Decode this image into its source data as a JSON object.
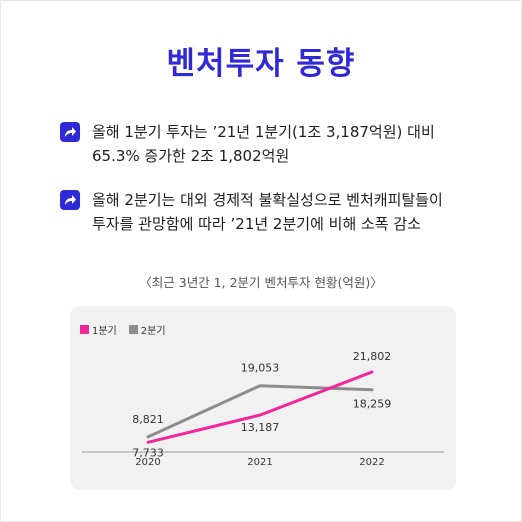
{
  "title": "벤처투자 동향",
  "bullets": [
    {
      "line1": "올해 1분기 투자는 ’21년 1분기(1조 3,187억원) 대비",
      "line2": "65.3% 증가한 2조 1,802억원"
    },
    {
      "line1": "올해 2분기는 대외 경제적 불확실성으로 벤처캐피탈들이",
      "line2": "투자를 관망함에 따라 ’21년 2분기에 비해 소폭 감소"
    }
  ],
  "colors": {
    "accent": "#2f29d6",
    "q1": "#f0269a",
    "q2": "#8c8c8c"
  },
  "icons": {
    "bullet": "share-arrow-icon"
  },
  "chart_data": {
    "type": "line",
    "title": "〈최근 3년간 1, 2분기 벤처투자 현황(억원)〉",
    "categories": [
      "2020",
      "2021",
      "2022"
    ],
    "ylim": [
      6000,
      24000
    ],
    "grid": false,
    "legend": "top-left",
    "series": [
      {
        "name": "1분기",
        "values": [
          7733,
          13187,
          21802
        ],
        "labels": [
          "7,733",
          "13,187",
          "21,802"
        ]
      },
      {
        "name": "2분기",
        "values": [
          8821,
          19053,
          18259
        ],
        "labels": [
          "8,821",
          "19,053",
          "18,259"
        ]
      }
    ]
  }
}
